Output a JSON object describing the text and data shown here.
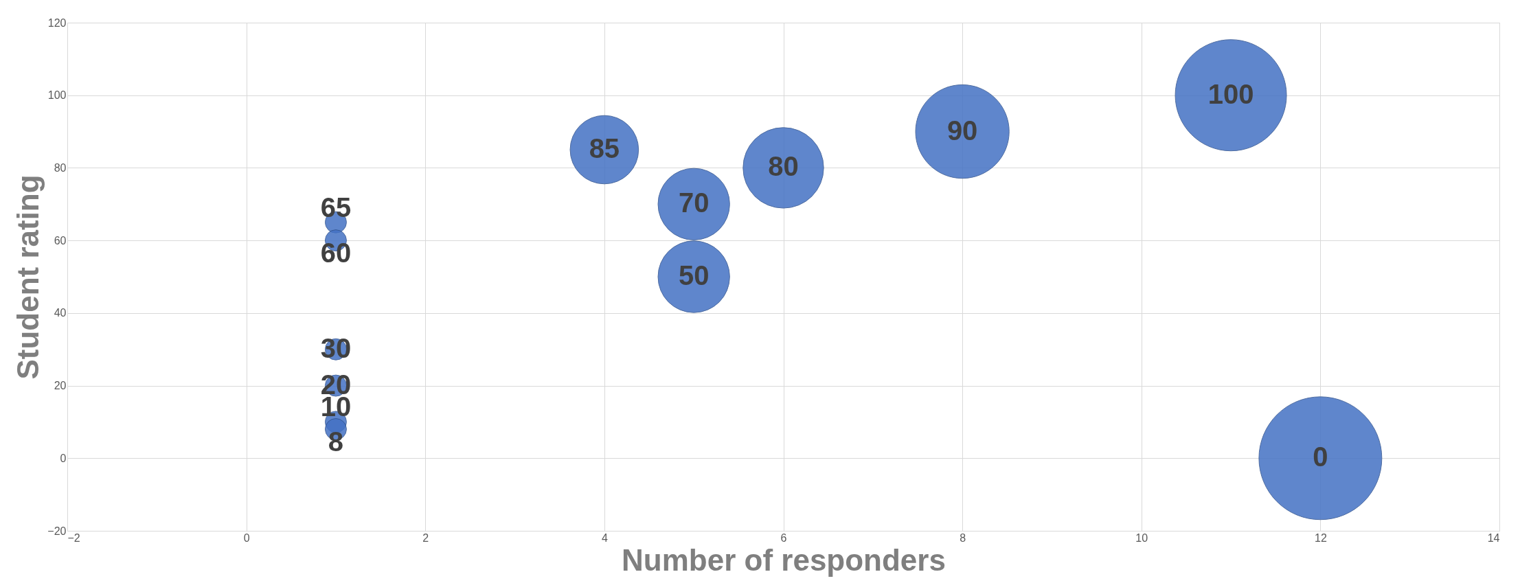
{
  "chart_data": {
    "type": "bubble",
    "xlabel": "Number of responders",
    "ylabel": "Student rating",
    "x": [
      1,
      1,
      1,
      1,
      1,
      1,
      4,
      5,
      5,
      6,
      8,
      11,
      12
    ],
    "values": [
      65,
      60,
      30,
      20,
      10,
      8,
      85,
      70,
      50,
      80,
      90,
      100,
      0
    ],
    "sizes": [
      0.03,
      0.03,
      0.03,
      0.03,
      0.03,
      0.03,
      0.31,
      0.34,
      0.34,
      0.43,
      0.58,
      0.82,
      1
    ],
    "color": "#4472c4",
    "data_labels": true,
    "xlim": [
      -2,
      14
    ],
    "xticks": [
      -2,
      0,
      2,
      4,
      6,
      8,
      10,
      12,
      14
    ],
    "ylim": [
      -20,
      120
    ],
    "yticks": [
      -20,
      0,
      20,
      40,
      60,
      80,
      100,
      120
    ],
    "grid": true,
    "legend": false
  }
}
